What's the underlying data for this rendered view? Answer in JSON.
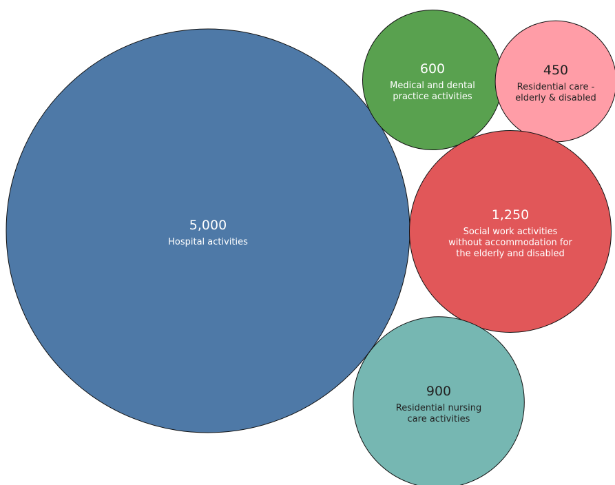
{
  "chart_data": {
    "type": "bubble",
    "title": "",
    "items": [
      {
        "category": "Hospital activities",
        "value_label": "5,000",
        "value": 5000,
        "color": "#4e79a7",
        "text_color": "#ffffff"
      },
      {
        "category": "Medical and dental practice activities",
        "value_label": "600",
        "value": 600,
        "color": "#59a14f",
        "text_color": "#ffffff"
      },
      {
        "category": "Residential care - elderly & disabled",
        "value_label": "450",
        "value": 450,
        "color": "#ff9da7",
        "text_color": "#222222"
      },
      {
        "category": "Social work activities without accommodation for the elderly and disabled",
        "value_label": "1,250",
        "value": 1250,
        "color": "#e15759",
        "text_color": "#ffffff"
      },
      {
        "category": "Residential nursing care activities",
        "value_label": "900",
        "value": 900,
        "color": "#76b7b2",
        "text_color": "#222222"
      }
    ]
  }
}
